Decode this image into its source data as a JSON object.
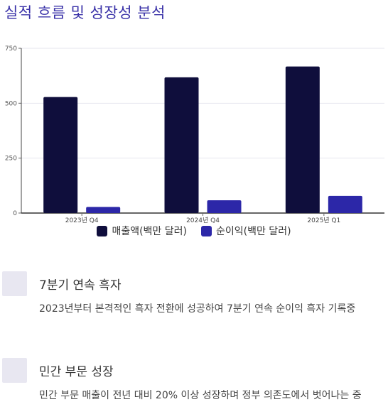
{
  "page": {
    "title": "실적 흐름 및 성장성 분석"
  },
  "chart_data": {
    "type": "bar",
    "categories": [
      "2023년 Q4",
      "2024년 Q4",
      "2025년 Q1"
    ],
    "series": [
      {
        "name": "매출액(백만 달러)",
        "values": [
          528,
          618,
          667
        ],
        "color": "#0f0e3c"
      },
      {
        "name": "순이익(백만 달러)",
        "values": [
          28,
          58,
          78
        ],
        "color": "#2c27a8"
      }
    ],
    "yticks": [
      0,
      250,
      500,
      750
    ],
    "ylim": [
      0,
      750
    ],
    "legend_position": "bottom"
  },
  "features": [
    {
      "title": "7분기 연속 흑자",
      "desc": "2023년부터 본격적인 흑자 전환에 성공하여 7분기 연속 순이익 흑자 기록중"
    },
    {
      "title": "민간 부문 성장",
      "desc": "민간 부문 매출이 전년 대비 20% 이상 성장하며 정부 의존도에서 벗어나는 중"
    }
  ]
}
